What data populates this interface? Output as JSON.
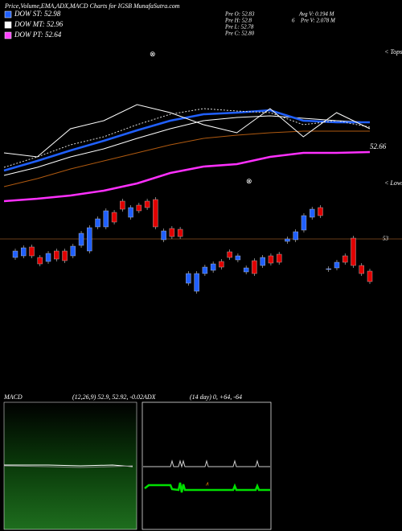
{
  "chart_data": {
    "type": "candlestick",
    "title": "Price,Volume,EMA,ADX,MACD Charts for IGSB MunafaSutra.com",
    "legend": [
      {
        "label": "DOW ST: 52.98",
        "color": "#2060ff"
      },
      {
        "label": "DOW MT: 52.96",
        "color": "#ffffff"
      },
      {
        "label": "DOW PT: 52.64",
        "color": "#ff40ff"
      }
    ],
    "stats": [
      "Pre O: 52.83",
      "Pre H: 52.8",
      "Pre L: 52.78",
      "Pre C: 52.80"
    ],
    "stats2": [
      "Avg V: 0.194 M",
      "6",
      "Pre V: 2.078 M"
    ],
    "last_label": "52.66",
    "side_labels": [
      "< Tops",
      "< Lows"
    ],
    "reference_line": 53,
    "ylim": [
      52.485,
      54.385
    ],
    "up_color": "#2060ff",
    "down_color": "#e00000",
    "candles": [
      {
        "open": 52.885,
        "close": 52.925
      },
      {
        "open": 52.895,
        "close": 52.945
      },
      {
        "open": 52.95,
        "close": 52.895
      },
      {
        "open": 52.885,
        "close": 52.845
      },
      {
        "open": 52.86,
        "close": 52.91
      },
      {
        "open": 52.925,
        "close": 52.875
      },
      {
        "open": 52.925,
        "close": 52.865
      },
      {
        "open": 52.895,
        "close": 52.955
      },
      {
        "open": 52.96,
        "close": 53.035
      },
      {
        "open": 52.925,
        "close": 53.07
      },
      {
        "open": 53.075,
        "close": 53.125
      },
      {
        "open": 53.075,
        "close": 53.175
      },
      {
        "open": 53.165,
        "close": 53.105
      },
      {
        "open": 53.235,
        "close": 53.185
      },
      {
        "open": 53.135,
        "close": 53.195
      },
      {
        "open": 53.21,
        "close": 53.175
      },
      {
        "open": 53.235,
        "close": 53.195
      },
      {
        "open": 53.245,
        "close": 53.075
      },
      {
        "open": 52.995,
        "close": 53.05
      },
      {
        "open": 53.065,
        "close": 53.015
      },
      {
        "open": 53.06,
        "close": 53.015
      },
      {
        "open": 52.725,
        "close": 52.785
      },
      {
        "open": 52.675,
        "close": 52.785
      },
      {
        "open": 52.785,
        "close": 52.825
      },
      {
        "open": 52.805,
        "close": 52.845
      },
      {
        "open": 52.86,
        "close": 52.825
      },
      {
        "open": 52.92,
        "close": 52.885
      },
      {
        "open": 52.87,
        "close": 52.895
      },
      {
        "open": 52.795,
        "close": 52.82
      },
      {
        "open": 52.865,
        "close": 52.785
      },
      {
        "open": 52.835,
        "close": 52.885
      },
      {
        "open": 52.895,
        "close": 52.85
      },
      {
        "open": 52.905,
        "close": 52.855
      },
      {
        "open": 52.985,
        "close": 53.0
      },
      {
        "open": 52.995,
        "close": 53.045
      },
      {
        "open": 53.055,
        "close": 53.145
      },
      {
        "open": 53.135,
        "close": 53.185
      },
      {
        "open": 53.195,
        "close": 53.145
      },
      {
        "open": 52.81,
        "close": 52.815
      },
      {
        "open": 52.82,
        "close": 52.855
      },
      {
        "open": 52.895,
        "close": 52.855
      },
      {
        "open": 53.005,
        "close": 52.835
      },
      {
        "open": 52.835,
        "close": 52.785
      },
      {
        "open": 52.8,
        "close": 52.735
      }
    ],
    "series": [
      {
        "color": "#ff30ff",
        "width": 2.5,
        "values": [
          53.235,
          53.25,
          53.27,
          53.3,
          53.345,
          53.41,
          53.45,
          53.465,
          53.51,
          53.535,
          53.535,
          53.54
        ]
      },
      {
        "color": "#b05a10",
        "width": 1,
        "values": [
          53.325,
          53.375,
          53.435,
          53.485,
          53.535,
          53.585,
          53.625,
          53.645,
          53.66,
          53.67,
          53.67,
          53.67
        ]
      },
      {
        "color": "#ffffff",
        "width": 1,
        "values": [
          53.395,
          53.445,
          53.51,
          53.56,
          53.625,
          53.685,
          53.735,
          53.755,
          53.765,
          53.75,
          53.735,
          53.725
        ]
      },
      {
        "color": "#2060ff",
        "width": 2.5,
        "values": [
          53.425,
          53.485,
          53.55,
          53.61,
          53.675,
          53.735,
          53.775,
          53.785,
          53.8,
          53.735,
          53.725,
          53.725
        ]
      },
      {
        "color": "#dddddd",
        "width": 1,
        "dash": true,
        "values": [
          53.445,
          53.51,
          53.585,
          53.635,
          53.71,
          53.775,
          53.81,
          53.795,
          53.785,
          53.71,
          53.735,
          53.695
        ]
      },
      {
        "color": "#ffffff",
        "width": 1,
        "values": [
          53.535,
          53.51,
          53.685,
          53.735,
          53.835,
          53.785,
          53.71,
          53.66,
          53.81,
          53.635,
          53.785,
          53.685
        ]
      }
    ],
    "macd_label": "MACD",
    "macd_params": "(12,26,9) 52.9, 52.92, -0.02",
    "adx_label": "ADX",
    "adx_params": "(14 day) 0, +64, -64"
  }
}
